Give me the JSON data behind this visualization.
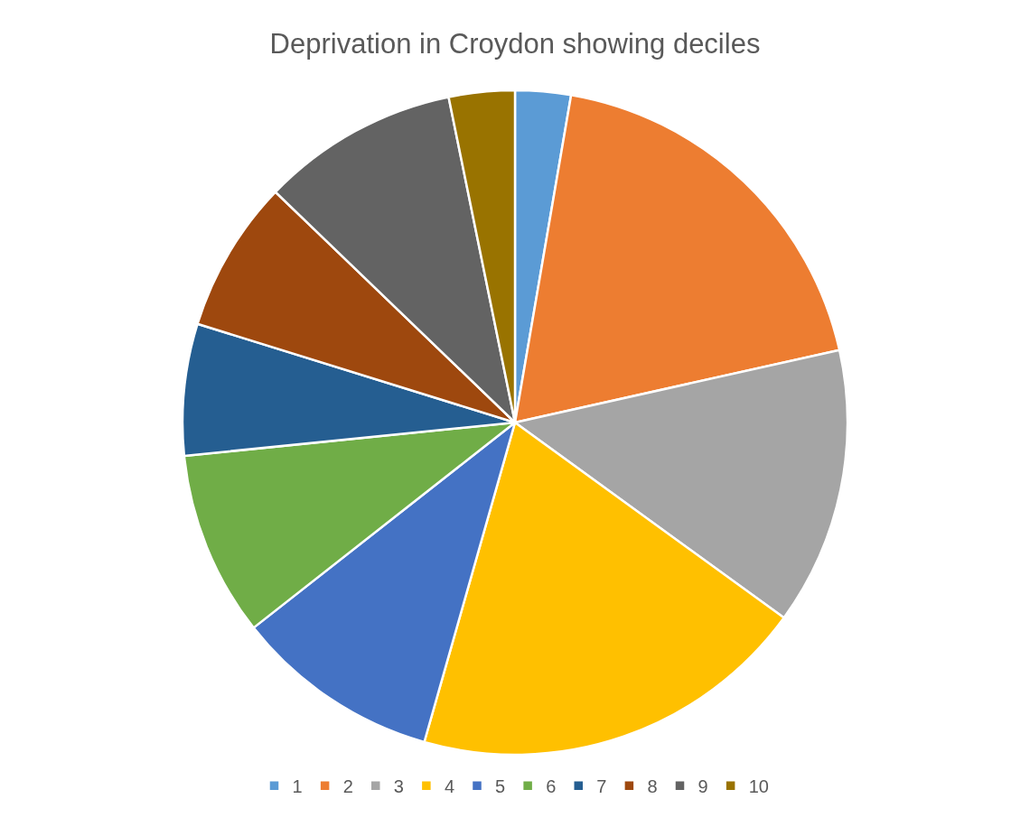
{
  "chart_data": {
    "type": "pie",
    "title": "Deprivation in Croydon showing deciles",
    "categories": [
      "1",
      "2",
      "3",
      "4",
      "5",
      "6",
      "7",
      "8",
      "9",
      "10"
    ],
    "values": [
      2.7,
      18.8,
      13.5,
      19.4,
      10.0,
      9.0,
      6.4,
      7.4,
      9.6,
      3.2
    ],
    "colors": [
      "#5b9bd5",
      "#ed7d31",
      "#a5a5a5",
      "#ffc000",
      "#4472c4",
      "#70ad47",
      "#255e91",
      "#9e480e",
      "#636363",
      "#997300"
    ],
    "legend": "bottom"
  }
}
